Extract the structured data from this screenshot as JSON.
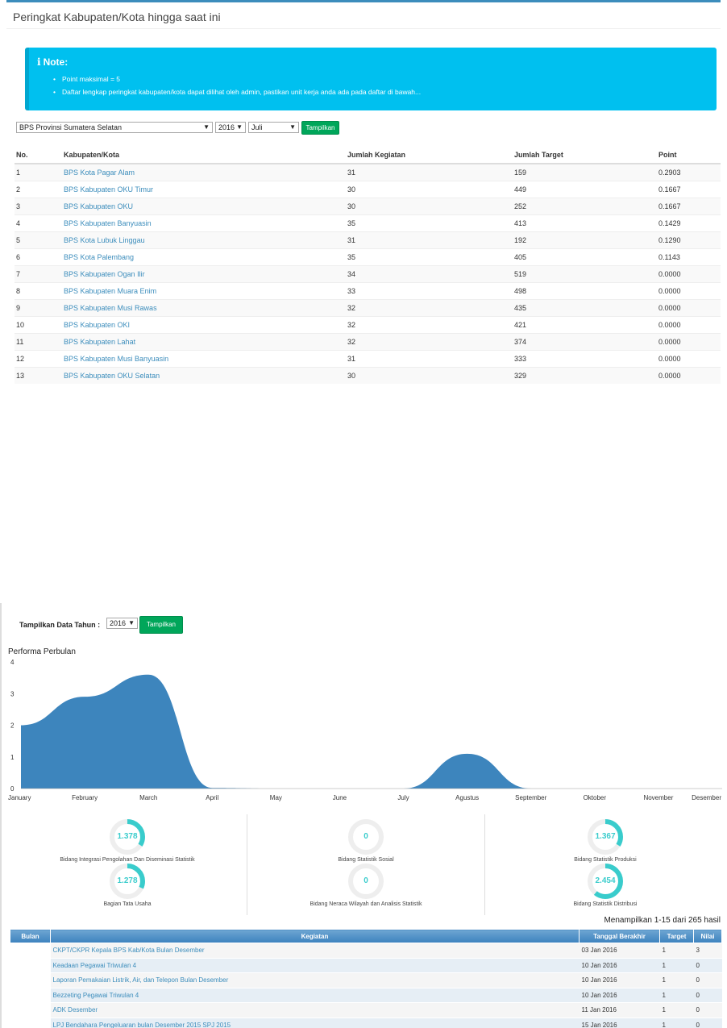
{
  "ranking": {
    "title": "Peringkat Kabupaten/Kota hingga saat ini",
    "note": {
      "heading": "Note:",
      "items": [
        "Point maksimal = 5",
        "Daftar lengkap peringkat kabupaten/kota dapat dilihat oleh admin, pastikan unit kerja anda ada pada daftar di bawah..."
      ]
    },
    "filters": {
      "province": "BPS Provinsi Sumatera Selatan",
      "year": "2016",
      "month": "Juli",
      "button": "Tampilkan"
    },
    "columns": [
      "No.",
      "Kabupaten/Kota",
      "Jumlah Kegiatan",
      "Jumlah Target",
      "Point"
    ],
    "rows": [
      [
        "1",
        "BPS Kota Pagar Alam",
        "31",
        "159",
        "0.2903"
      ],
      [
        "2",
        "BPS Kabupaten OKU Timur",
        "30",
        "449",
        "0.1667"
      ],
      [
        "3",
        "BPS Kabupaten OKU",
        "30",
        "252",
        "0.1667"
      ],
      [
        "4",
        "BPS Kabupaten Banyuasin",
        "35",
        "413",
        "0.1429"
      ],
      [
        "5",
        "BPS Kota Lubuk Linggau",
        "31",
        "192",
        "0.1290"
      ],
      [
        "6",
        "BPS Kota Palembang",
        "35",
        "405",
        "0.1143"
      ],
      [
        "7",
        "BPS Kabupaten Ogan Ilir",
        "34",
        "519",
        "0.0000"
      ],
      [
        "8",
        "BPS Kabupaten Muara Enim",
        "33",
        "498",
        "0.0000"
      ],
      [
        "9",
        "BPS Kabupaten Musi Rawas",
        "32",
        "435",
        "0.0000"
      ],
      [
        "10",
        "BPS Kabupaten OKI",
        "32",
        "421",
        "0.0000"
      ],
      [
        "11",
        "BPS Kabupaten Lahat",
        "32",
        "374",
        "0.0000"
      ],
      [
        "12",
        "BPS Kabupaten Musi Banyuasin",
        "31",
        "333",
        "0.0000"
      ],
      [
        "13",
        "BPS Kabupaten OKU Selatan",
        "30",
        "329",
        "0.0000"
      ]
    ]
  },
  "performance": {
    "year_label": "Tampilkan Data Tahun :",
    "year_value": "2016",
    "button": "Tampilkan",
    "accent_color": "#3d85bd",
    "gauge_color": "#39cccc"
  },
  "chart_data": {
    "type": "area",
    "title": "Performa Perbulan",
    "categories": [
      "January",
      "February",
      "March",
      "April",
      "May",
      "June",
      "July",
      "Agustus",
      "September",
      "Oktober",
      "November",
      "Desember"
    ],
    "values": [
      2.0,
      2.9,
      3.6,
      0.02,
      0.0,
      0.0,
      0.0,
      1.1,
      0.0,
      0.0,
      0.0,
      0.0
    ],
    "ylim": [
      0,
      4
    ],
    "yticks": [
      0,
      1,
      2,
      3,
      4
    ],
    "grid": false
  },
  "gauges": [
    {
      "value": "1.378",
      "fraction": 0.34,
      "label": "Bidang Integrasi Pengolahan Dan Diseminasi Statistik"
    },
    {
      "value": "0",
      "fraction": 0,
      "label": "Bidang Statistik Sosial"
    },
    {
      "value": "1.367",
      "fraction": 0.34,
      "label": "Bidang Statistik Produksi"
    },
    {
      "value": "1.278",
      "fraction": 0.32,
      "label": "Bagian Tata Usaha"
    },
    {
      "value": "0",
      "fraction": 0,
      "label": "Bidang Neraca Wilayah dan Analisis Statistik"
    },
    {
      "value": "2.454",
      "fraction": 0.61,
      "label": "Bidang Statistik Distribusi"
    }
  ],
  "activity": {
    "summary": "Menampilkan 1-15 dari 265 hasil",
    "columns": [
      "Bulan",
      "Kegiatan",
      "Tanggal Berakhir",
      "Target",
      "Nilai"
    ],
    "rows": [
      [
        "CKPT/CKPR Kepala BPS Kab/Kota Bulan Desember",
        "03 Jan 2016",
        "1",
        "3"
      ],
      [
        "Keadaan Pegawai Triwulan 4",
        "10 Jan 2016",
        "1",
        "0"
      ],
      [
        "Laporan Pemakaian Listrik, Air, dan Telepon Bulan Desember",
        "10 Jan 2016",
        "1",
        "0"
      ],
      [
        "Bezzeting Pegawai Triwulan 4",
        "10 Jan 2016",
        "1",
        "0"
      ],
      [
        "ADK Desember",
        "11 Jan 2016",
        "1",
        "0"
      ],
      [
        "LPJ Bendahara Pengeluaran bulan Desember 2015 SPJ 2015",
        "15 Jan 2016",
        "1",
        "0"
      ]
    ]
  }
}
